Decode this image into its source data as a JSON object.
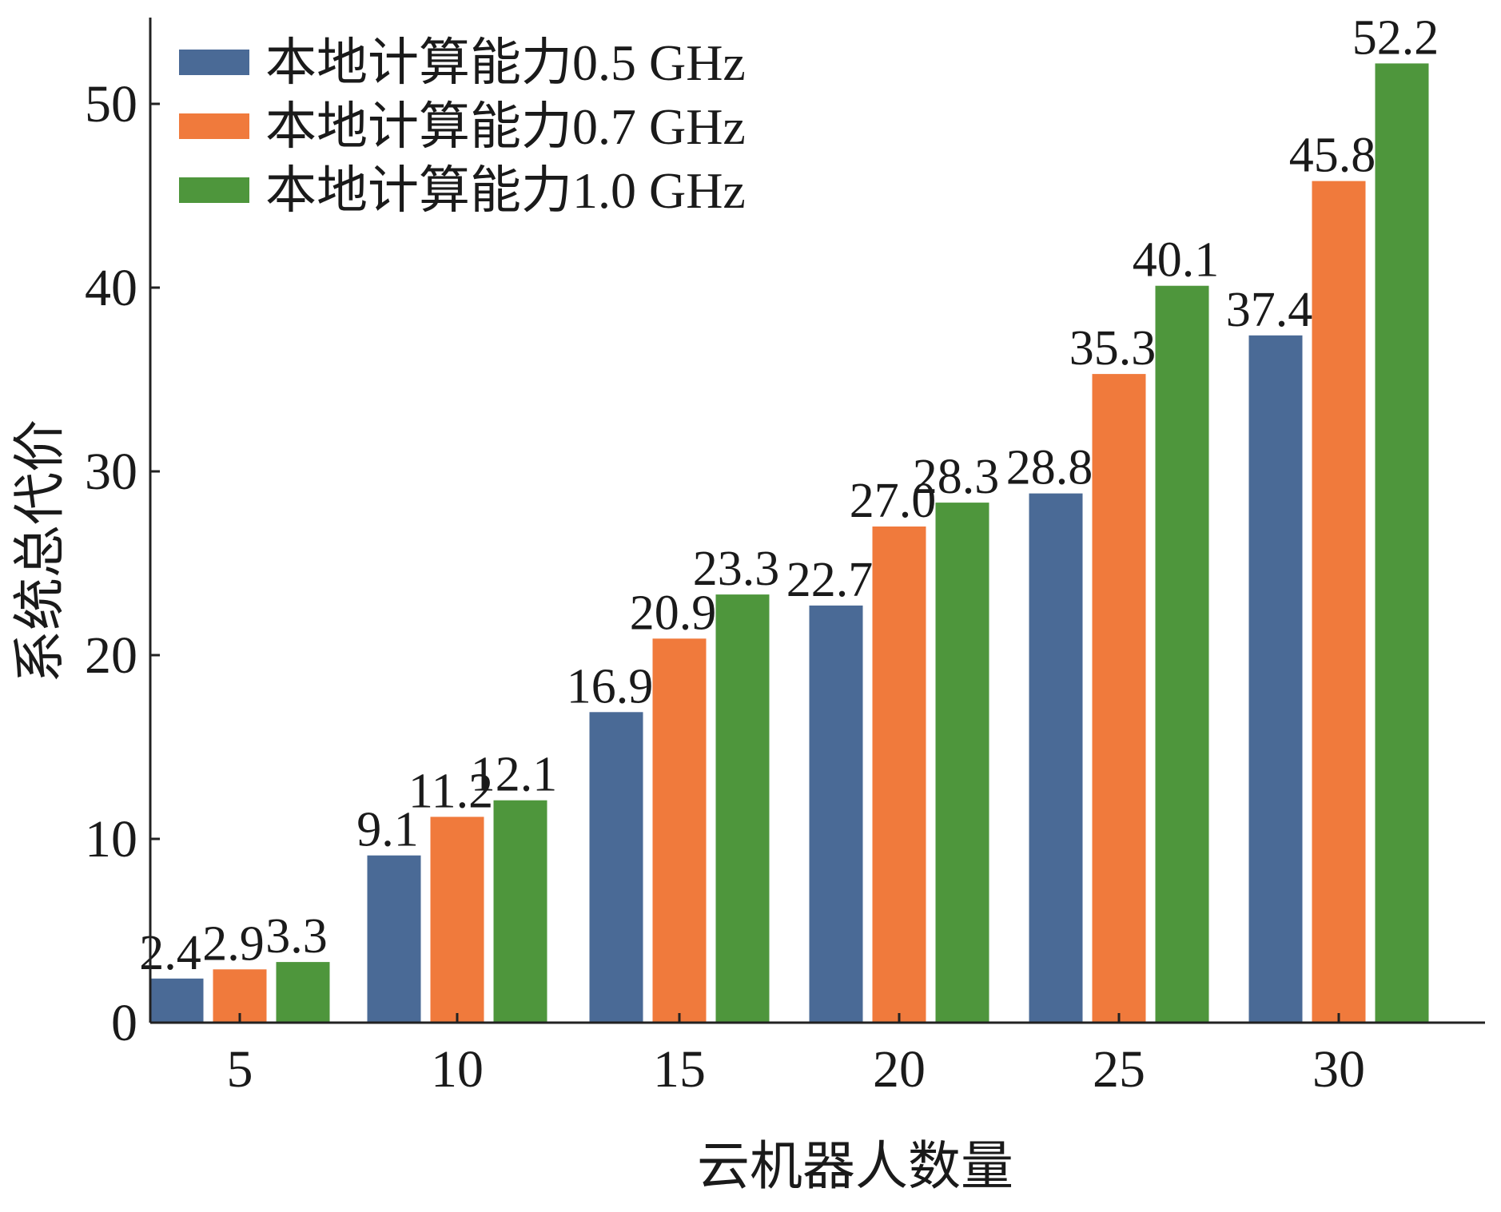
{
  "chart_data": {
    "type": "bar",
    "title": "",
    "xlabel": "云机器人数量",
    "ylabel": "系统总代价",
    "categories": [
      "5",
      "10",
      "15",
      "20",
      "25",
      "30"
    ],
    "ylim": [
      0,
      55
    ],
    "yticks": [
      0,
      10,
      20,
      30,
      40,
      50
    ],
    "grid": false,
    "legend_position": "top-left",
    "series": [
      {
        "name": "本地计算能力0.5 GHz",
        "color": "#4a6a96",
        "values": [
          2.4,
          9.1,
          16.9,
          22.7,
          28.8,
          37.4
        ]
      },
      {
        "name": "本地计算能力0.7 GHz",
        "color": "#f07a3c",
        "values": [
          2.9,
          11.2,
          20.9,
          27.0,
          35.3,
          45.8
        ]
      },
      {
        "name": "本地计算能力1.0 GHz",
        "color": "#4e963c",
        "values": [
          3.3,
          12.1,
          23.3,
          28.3,
          40.1,
          52.2
        ]
      }
    ],
    "data_labels": [
      [
        "2.4",
        "9.1",
        "16.9",
        "22.7",
        "28.8",
        "37.4"
      ],
      [
        "2.9",
        "11.2",
        "20.9",
        "27.0",
        "35.3",
        "45.8"
      ],
      [
        "3.3",
        "12.1",
        "23.3",
        "28.3",
        "40.1",
        "52.2"
      ]
    ]
  }
}
